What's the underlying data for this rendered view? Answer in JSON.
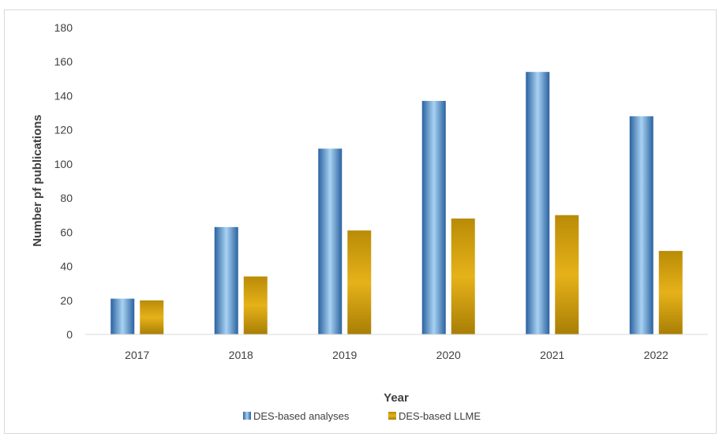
{
  "chart_data": {
    "type": "bar",
    "title": "",
    "xlabel": "Year",
    "ylabel": "Number pf publications",
    "categories": [
      "2017",
      "2018",
      "2019",
      "2020",
      "2021",
      "2022"
    ],
    "series": [
      {
        "name": "DES-based analyses",
        "values": [
          21,
          63,
          109,
          137,
          154,
          128
        ],
        "color": "#2f6aa8"
      },
      {
        "name": "DES-based LLME",
        "values": [
          20,
          34,
          61,
          68,
          70,
          49
        ],
        "color": "#c69a08"
      }
    ],
    "ylim": [
      0,
      180
    ],
    "yticks": [
      "0",
      "20",
      "40",
      "60",
      "80",
      "100",
      "120",
      "140",
      "160",
      "180"
    ],
    "grid": false,
    "legend": "bottom"
  }
}
